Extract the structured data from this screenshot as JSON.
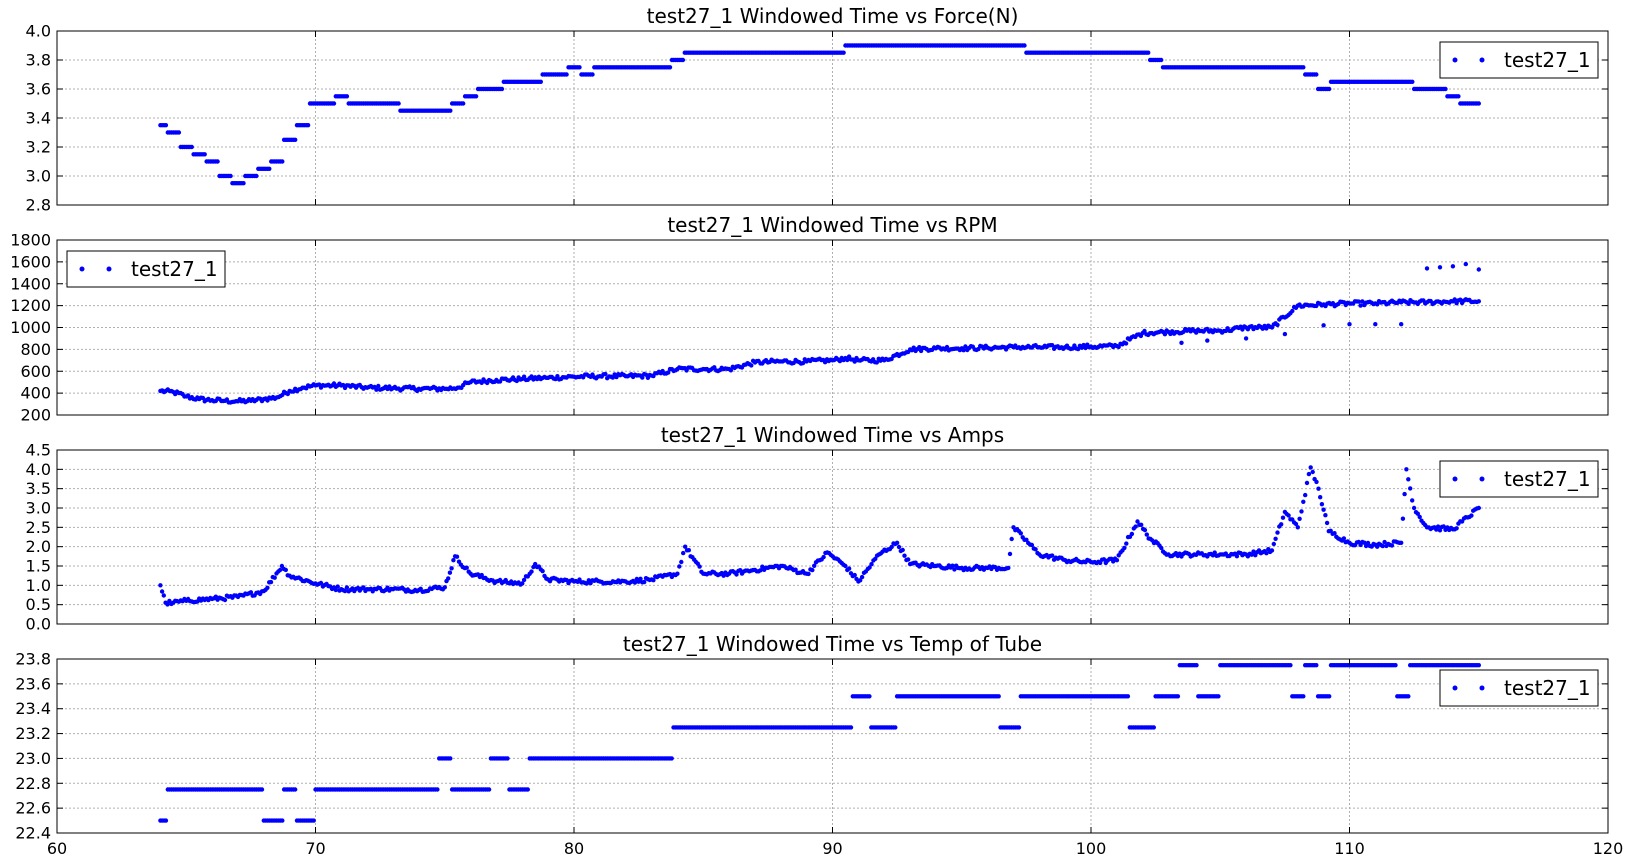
{
  "figure": {
    "point_color": "#0000ff",
    "grid": true,
    "x_axis": {
      "range": [
        60,
        120
      ],
      "ticks": [
        60,
        70,
        80,
        90,
        100,
        110,
        120
      ],
      "tick_labels": [
        "60",
        "70",
        "80",
        "90",
        "100",
        "110",
        "120"
      ]
    }
  },
  "chart_data": [
    {
      "type": "scatter",
      "title": "test27_1 Windowed Time vs Force(N)",
      "xlabel": "",
      "ylabel": "",
      "xlim": [
        60,
        120
      ],
      "ylim": [
        2.8,
        4.0
      ],
      "yticks": [
        2.8,
        3.0,
        3.2,
        3.4,
        3.6,
        3.8,
        4.0
      ],
      "ytick_labels": [
        "2.8",
        "3.0",
        "3.2",
        "3.4",
        "3.6",
        "3.8",
        "4.0"
      ],
      "legend": {
        "labels": [
          "test27_1"
        ],
        "placement": "top-right"
      },
      "grid": true,
      "series": [
        {
          "name": "test27_1",
          "x": [
            64.0,
            64.5,
            65.0,
            65.5,
            66.0,
            66.5,
            67.0,
            67.5,
            68.0,
            68.5,
            69.0,
            69.5,
            70.0,
            70.5,
            71.0,
            71.5,
            72.0,
            72.5,
            73.0,
            73.5,
            74.0,
            74.5,
            75.0,
            75.5,
            76.0,
            76.5,
            77.0,
            77.5,
            78.0,
            78.5,
            79.0,
            79.5,
            80.0,
            80.5,
            81.0,
            81.5,
            82.0,
            82.5,
            83.0,
            83.5,
            84.0,
            84.5,
            85.0,
            86.0,
            87.0,
            88.0,
            89.0,
            90.0,
            91.0,
            92.0,
            93.0,
            94.0,
            95.0,
            96.0,
            97.0,
            98.0,
            99.0,
            100.0,
            101.0,
            102.0,
            102.5,
            103.0,
            104.0,
            105.0,
            106.0,
            107.0,
            108.0,
            108.5,
            109.0,
            109.5,
            110.0,
            111.0,
            112.0,
            113.0,
            113.5,
            114.0,
            114.5,
            115.0
          ],
          "y": [
            3.35,
            3.3,
            3.2,
            3.15,
            3.1,
            3.0,
            2.95,
            3.0,
            3.05,
            3.1,
            3.25,
            3.35,
            3.5,
            3.5,
            3.55,
            3.5,
            3.5,
            3.5,
            3.5,
            3.45,
            3.45,
            3.45,
            3.45,
            3.5,
            3.55,
            3.6,
            3.6,
            3.65,
            3.65,
            3.65,
            3.7,
            3.7,
            3.75,
            3.7,
            3.75,
            3.75,
            3.75,
            3.75,
            3.75,
            3.75,
            3.8,
            3.85,
            3.85,
            3.85,
            3.85,
            3.85,
            3.85,
            3.85,
            3.9,
            3.9,
            3.9,
            3.9,
            3.9,
            3.9,
            3.9,
            3.85,
            3.85,
            3.85,
            3.85,
            3.85,
            3.8,
            3.75,
            3.75,
            3.75,
            3.75,
            3.75,
            3.75,
            3.7,
            3.6,
            3.65,
            3.65,
            3.65,
            3.65,
            3.6,
            3.6,
            3.55,
            3.5,
            3.5
          ]
        }
      ]
    },
    {
      "type": "scatter",
      "title": "test27_1 Windowed Time vs RPM",
      "xlabel": "",
      "ylabel": "",
      "xlim": [
        60,
        120
      ],
      "ylim": [
        200,
        1800
      ],
      "yticks": [
        200,
        400,
        600,
        800,
        1000,
        1200,
        1400,
        1600,
        1800
      ],
      "ytick_labels": [
        "200",
        "400",
        "600",
        "800",
        "1000",
        "1200",
        "1400",
        "1600",
        "1800"
      ],
      "legend": {
        "labels": [
          "test27_1"
        ],
        "placement": "top-left"
      },
      "grid": true,
      "series": [
        {
          "name": "test27_1",
          "x": [
            64.0,
            64.5,
            65.0,
            65.5,
            66.0,
            66.5,
            67.0,
            67.5,
            68.0,
            68.5,
            69.0,
            69.5,
            70.0,
            71.0,
            72.0,
            73.0,
            74.0,
            75.0,
            75.5,
            76.0,
            77.0,
            78.0,
            79.0,
            80.0,
            81.0,
            82.0,
            83.0,
            84.0,
            85.0,
            86.0,
            87.0,
            88.0,
            89.0,
            90.0,
            90.5,
            91.0,
            92.0,
            93.0,
            94.0,
            95.0,
            96.0,
            97.0,
            98.0,
            99.0,
            100.0,
            101.0,
            102.0,
            103.0,
            104.0,
            105.0,
            106.0,
            107.0,
            108.0,
            109.0,
            110.0,
            111.0,
            112.0,
            113.0,
            114.0,
            115.0
          ],
          "y": [
            420,
            410,
            370,
            345,
            335,
            330,
            325,
            330,
            345,
            360,
            420,
            450,
            470,
            470,
            450,
            445,
            440,
            440,
            450,
            500,
            520,
            530,
            540,
            550,
            555,
            555,
            560,
            620,
            620,
            620,
            680,
            690,
            690,
            700,
            720,
            700,
            700,
            800,
            810,
            810,
            815,
            820,
            820,
            820,
            825,
            830,
            950,
            960,
            970,
            970,
            1000,
            1000,
            1200,
            1210,
            1220,
            1220,
            1230,
            1230,
            1240,
            1240
          ]
        },
        {
          "name": "test27_1",
          "x": [
            103.5,
            104.5,
            106.0,
            107.5,
            109.0,
            110.0,
            111.0,
            112.0,
            113.0,
            113.5,
            114.0,
            114.5,
            115.0
          ],
          "y": [
            860,
            880,
            900,
            940,
            1020,
            1030,
            1030,
            1030,
            1540,
            1550,
            1560,
            1580,
            1530
          ]
        }
      ]
    },
    {
      "type": "scatter",
      "title": "test27_1 Windowed Time vs Amps",
      "xlabel": "",
      "ylabel": "",
      "xlim": [
        60,
        120
      ],
      "ylim": [
        0.0,
        4.5
      ],
      "yticks": [
        0.0,
        0.5,
        1.0,
        1.5,
        2.0,
        2.5,
        3.0,
        3.5,
        4.0,
        4.5
      ],
      "ytick_labels": [
        "0.0",
        "0.5",
        "1.0",
        "1.5",
        "2.0",
        "2.5",
        "3.0",
        "3.5",
        "4.0",
        "4.5"
      ],
      "legend": {
        "labels": [
          "test27_1"
        ],
        "placement": "top-right"
      },
      "grid": true,
      "series": [
        {
          "name": "test27_1",
          "x": [
            64.0,
            64.2,
            64.5,
            65.0,
            66.0,
            67.0,
            68.0,
            68.7,
            69.0,
            70.0,
            71.0,
            72.0,
            73.0,
            74.0,
            75.0,
            75.4,
            76.0,
            77.0,
            78.0,
            78.5,
            79.0,
            80.0,
            81.0,
            82.0,
            83.0,
            84.0,
            84.3,
            85.0,
            86.0,
            87.0,
            88.0,
            89.0,
            89.8,
            90.5,
            91.0,
            91.8,
            92.5,
            93.0,
            94.0,
            95.0,
            96.0,
            96.8,
            97.0,
            98.0,
            99.0,
            100.0,
            101.0,
            101.8,
            102.3,
            103.0,
            104.0,
            105.0,
            106.0,
            107.0,
            107.5,
            108.0,
            108.5,
            108.8,
            109.2,
            110.0,
            111.0,
            112.0,
            112.2,
            112.5,
            113.0,
            114.0,
            115.0
          ],
          "y": [
            1.0,
            0.55,
            0.55,
            0.6,
            0.65,
            0.7,
            0.85,
            1.5,
            1.25,
            1.05,
            0.9,
            0.9,
            0.9,
            0.88,
            0.95,
            1.75,
            1.3,
            1.1,
            1.05,
            1.55,
            1.15,
            1.1,
            1.1,
            1.1,
            1.15,
            1.3,
            2.0,
            1.3,
            1.3,
            1.4,
            1.5,
            1.3,
            1.85,
            1.5,
            1.1,
            1.8,
            2.1,
            1.55,
            1.5,
            1.45,
            1.45,
            1.45,
            2.5,
            1.8,
            1.65,
            1.6,
            1.65,
            2.65,
            2.2,
            1.8,
            1.8,
            1.8,
            1.8,
            1.9,
            2.9,
            2.5,
            4.05,
            3.5,
            2.4,
            2.1,
            2.05,
            2.1,
            4.0,
            3.0,
            2.5,
            2.45,
            3.0
          ]
        }
      ]
    },
    {
      "type": "scatter",
      "title": "test27_1 Windowed Time vs Temp of Tube",
      "xlabel": "",
      "ylabel": "",
      "xlim": [
        60,
        120
      ],
      "ylim": [
        22.4,
        23.8
      ],
      "yticks": [
        22.4,
        22.6,
        22.8,
        23.0,
        23.2,
        23.4,
        23.6,
        23.8
      ],
      "ytick_labels": [
        "22.4",
        "22.6",
        "22.8",
        "23.0",
        "23.2",
        "23.4",
        "23.6",
        "23.8"
      ],
      "legend": {
        "labels": [
          "test27_1"
        ],
        "placement": "top-right"
      },
      "grid": true,
      "series": [
        {
          "name": "test27_1",
          "x": [
            64.0,
            64.5,
            65.5,
            66.5,
            67.5,
            68.5,
            69.0,
            69.5,
            70.5,
            71.5,
            72.5,
            73.5,
            74.5,
            75.0,
            75.5,
            76.5,
            77.0,
            78.0,
            78.5,
            79.5,
            80.5,
            81.5,
            82.5,
            83.5,
            84.2,
            84.5,
            85.5,
            86.5,
            87.5,
            88.5,
            89.5,
            90.5,
            91.0,
            92.0,
            93.0,
            94.0,
            95.0,
            96.0,
            97.0,
            97.5,
            98.0,
            99.0,
            100.0,
            101.0,
            102.0,
            103.0,
            103.8,
            104.5,
            105.5,
            106.5,
            107.5,
            108.0,
            108.5,
            109.0,
            109.5,
            110.5,
            111.5,
            112.2,
            112.5,
            113.5,
            114.5,
            115.0
          ],
          "y": [
            22.5,
            22.75,
            22.75,
            22.75,
            22.75,
            22.5,
            22.75,
            22.5,
            22.75,
            22.75,
            22.75,
            22.75,
            22.75,
            23.0,
            22.75,
            22.75,
            23.0,
            22.75,
            23.0,
            23.0,
            23.0,
            23.0,
            23.0,
            23.0,
            23.25,
            23.25,
            23.25,
            23.25,
            23.25,
            23.25,
            23.25,
            23.25,
            23.5,
            23.25,
            23.5,
            23.5,
            23.5,
            23.5,
            23.25,
            23.5,
            23.5,
            23.5,
            23.5,
            23.5,
            23.25,
            23.5,
            23.75,
            23.5,
            23.75,
            23.75,
            23.75,
            23.5,
            23.75,
            23.5,
            23.75,
            23.75,
            23.75,
            23.5,
            23.75,
            23.75,
            23.75,
            23.75
          ]
        }
      ]
    }
  ]
}
